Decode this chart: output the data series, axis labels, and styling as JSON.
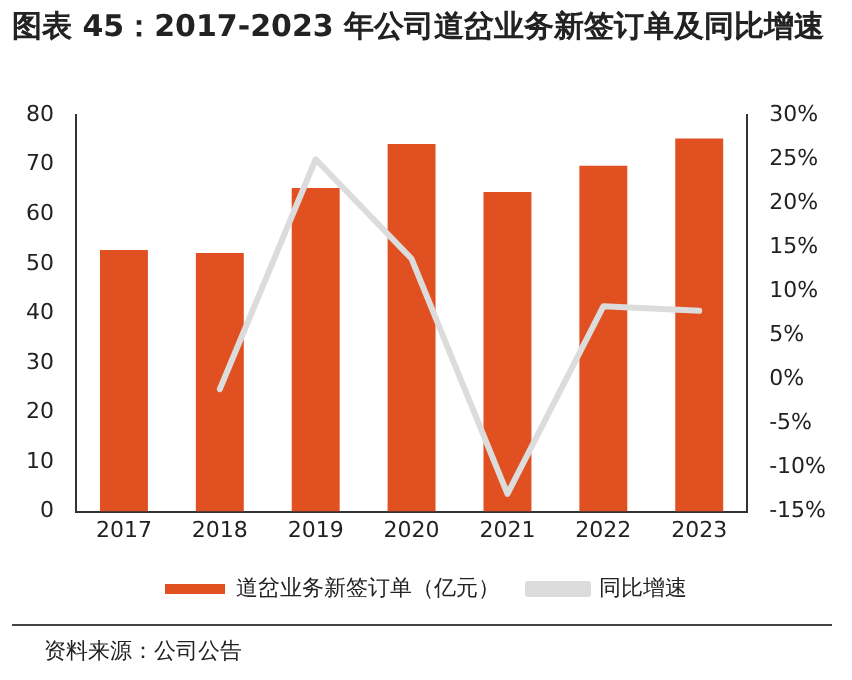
{
  "chart_data": {
    "type": "bar",
    "title": "图表 45：2017-2023 年公司道岔业务新签订单及同比增速",
    "categories": [
      "2017",
      "2018",
      "2019",
      "2020",
      "2021",
      "2022",
      "2023"
    ],
    "series": [
      {
        "name": "道岔业务新签订单（亿元）",
        "color": "#e05020",
        "values": [
          52.8,
          52.2,
          65.3,
          74.2,
          64.5,
          69.8,
          75.3
        ]
      },
      {
        "name": "同比增速",
        "type": "line",
        "axis": "y2",
        "color": "#dcdcdc",
        "values": [
          null,
          -1.1,
          25,
          13.7,
          -13,
          8.3,
          7.8
        ]
      }
    ],
    "ylim": [
      0,
      80
    ],
    "yticks": [
      0,
      10,
      20,
      30,
      40,
      50,
      60,
      70,
      80
    ],
    "y2lim": [
      -15,
      30
    ],
    "y2ticks": [
      {
        "value": -15,
        "label": "-15%"
      },
      {
        "value": -10,
        "label": "-10%"
      },
      {
        "value": -5,
        "label": "-5%"
      },
      {
        "value": 0,
        "label": "0%"
      },
      {
        "value": 5,
        "label": "5%"
      },
      {
        "value": 10,
        "label": "10%"
      },
      {
        "value": 15,
        "label": "15%"
      },
      {
        "value": 20,
        "label": "20%"
      },
      {
        "value": 25,
        "label": "25%"
      },
      {
        "value": 30,
        "label": "30%"
      }
    ],
    "grid": false,
    "legend": "bottom",
    "marker": "none",
    "line_style": "solid",
    "annotations": [
      "资料来源：公司公告"
    ]
  }
}
